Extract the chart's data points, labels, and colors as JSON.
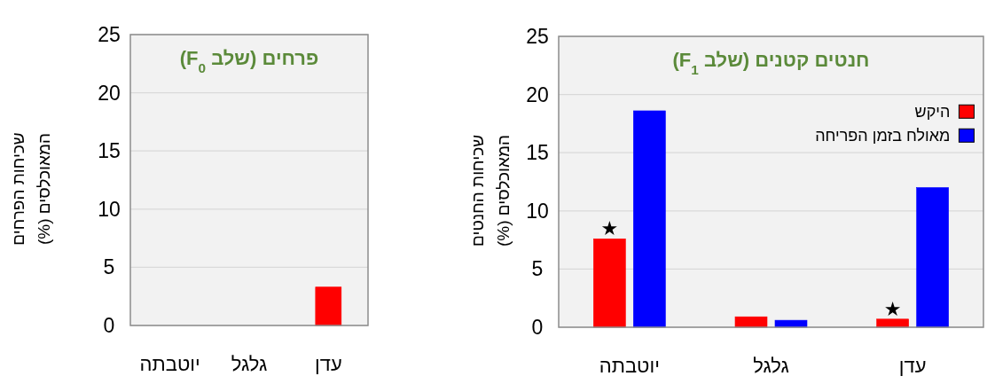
{
  "chart_data": [
    {
      "type": "bar",
      "title": "פרחים (שלב F$_{0}$)",
      "ylabel": "שכיחות הפרחים המאוכלסים (%)",
      "categories": [
        "יוטבתה",
        "גלגל",
        "עדן"
      ],
      "series": [
        {
          "color": "#ff0000",
          "values": [
            0,
            0,
            3.3
          ]
        }
      ],
      "ylim": [
        0,
        25
      ],
      "yticks": [
        0,
        5,
        10,
        15,
        20,
        25
      ],
      "grid": "y"
    },
    {
      "type": "bar",
      "title": "חנטים קטנים (שלב F$_{1}$)",
      "ylabel": "שכיחות החנטים המאוכלסים (%)",
      "categories": [
        "יוטבתה",
        "גלגל",
        "עדן"
      ],
      "series": [
        {
          "name": "היקש",
          "color": "#ff0000",
          "values": [
            7.6,
            0.9,
            0.7
          ]
        },
        {
          "name": "מאולח בזמן הפריחה",
          "color": "#0000ff",
          "values": [
            18.6,
            0.6,
            12.0
          ]
        }
      ],
      "ylim": [
        0,
        25
      ],
      "yticks": [
        0,
        5,
        10,
        15,
        20,
        25
      ],
      "grid": "y",
      "legend": "top right",
      "annotations": [
        {
          "text": "★",
          "x": "יוטבתה",
          "y": 7.6
        },
        {
          "text": "★",
          "x": "עדן",
          "y": 0.7
        }
      ]
    }
  ]
}
